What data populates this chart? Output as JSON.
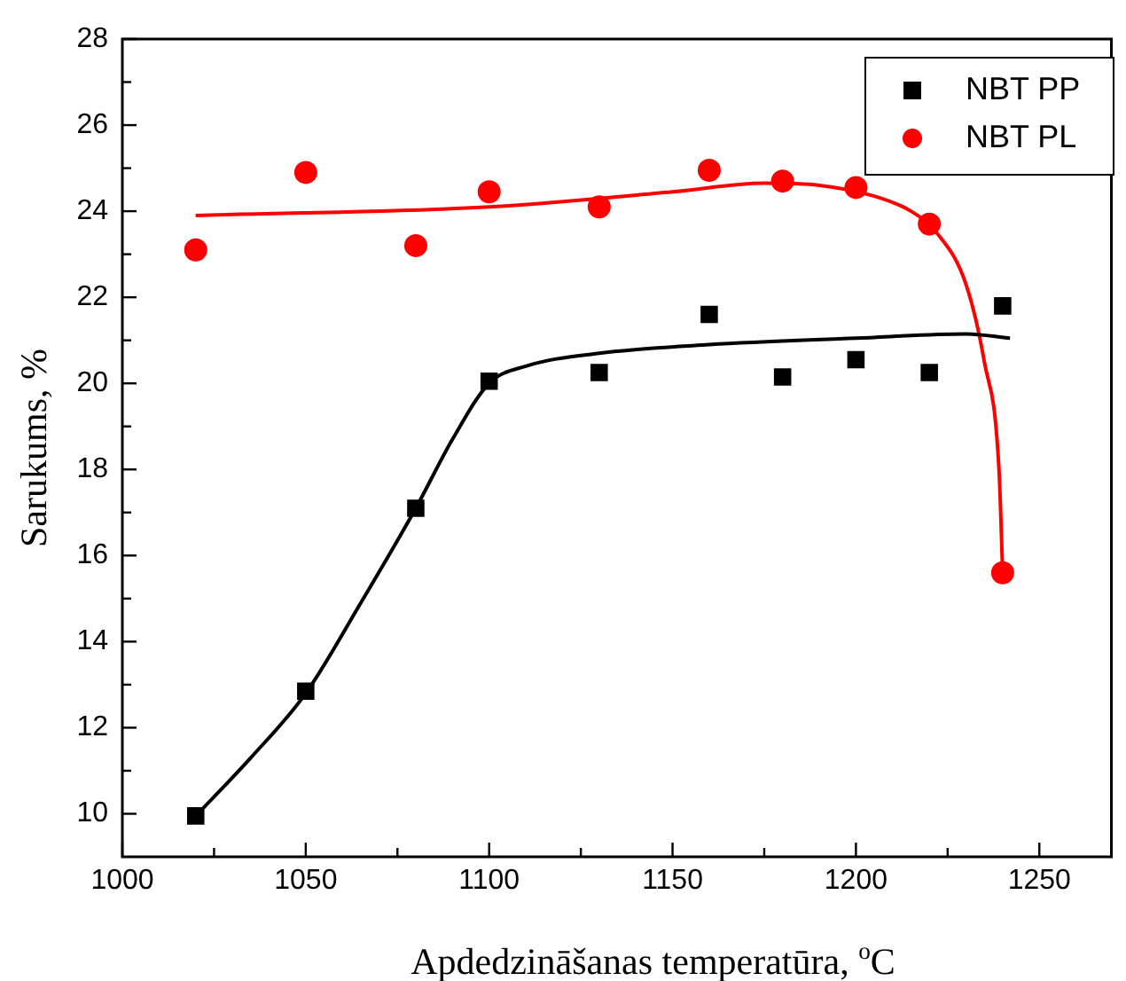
{
  "chart_data": {
    "type": "scatter",
    "xlabel": "Apdedzināšanas temperatūra, $^{o}$C",
    "ylabel": "Sarukums, %",
    "xlim": [
      1000,
      1270
    ],
    "xticks": [
      1000,
      {
        "value": 1025,
        "label": null
      },
      1050,
      {
        "value": 1075,
        "label": null
      },
      1100,
      {
        "value": 1125,
        "label": null
      },
      1150,
      {
        "value": 1175,
        "label": null
      },
      1200,
      {
        "value": 1225,
        "label": null
      },
      1250
    ],
    "ylim": [
      9,
      28
    ],
    "yticks": [
      10,
      {
        "value": 11,
        "label": null
      },
      12,
      {
        "value": 13,
        "label": null
      },
      14,
      {
        "value": 15,
        "label": null
      },
      16,
      {
        "value": 17,
        "label": null
      },
      18,
      {
        "value": 19,
        "label": null
      },
      20,
      {
        "value": 21,
        "label": null
      },
      22,
      {
        "value": 23,
        "label": null
      },
      24,
      {
        "value": 25,
        "label": null
      },
      26,
      {
        "value": 27,
        "label": null
      },
      28
    ],
    "grid": false,
    "legend": "top right",
    "series": [
      {
        "name": "NBT PP",
        "type": "scatter",
        "marker": "square",
        "color": "#000000",
        "x": [
          1020,
          1050,
          1080,
          1100,
          1130,
          1160,
          1180,
          1200,
          1220,
          1240
        ],
        "values": [
          9.95,
          12.85,
          17.1,
          20.05,
          20.25,
          21.6,
          20.15,
          20.55,
          20.25,
          21.8
        ]
      },
      {
        "name": "NBT PL",
        "type": "scatter",
        "marker": "circle",
        "color": "#ff0000",
        "x": [
          1020,
          1050,
          1080,
          1100,
          1130,
          1160,
          1180,
          1200,
          1220,
          1240
        ],
        "values": [
          23.1,
          24.9,
          23.2,
          24.45,
          24.1,
          24.95,
          24.7,
          24.55,
          23.7,
          15.6
        ]
      },
      {
        "type": "line",
        "marker": "none",
        "line_style": "solid",
        "color": "#000000",
        "x": [
          1020,
          1035,
          1050,
          1065,
          1080,
          1090,
          1100,
          1110,
          1130,
          1160,
          1200,
          1230,
          1242
        ],
        "values": [
          9.95,
          11.3,
          12.8,
          14.9,
          17.1,
          18.7,
          20.0,
          20.4,
          20.7,
          20.9,
          21.05,
          21.15,
          21.05
        ]
      },
      {
        "type": "line",
        "marker": "none",
        "line_style": "solid",
        "color": "#ff0000",
        "x": [
          1020,
          1100,
          1150,
          1175,
          1190,
          1205,
          1215,
          1222,
          1230,
          1235,
          1239,
          1240
        ],
        "values": [
          23.9,
          24.1,
          24.45,
          24.65,
          24.6,
          24.35,
          24.0,
          23.5,
          22.3,
          20.5,
          18.0,
          15.6
        ]
      }
    ]
  }
}
